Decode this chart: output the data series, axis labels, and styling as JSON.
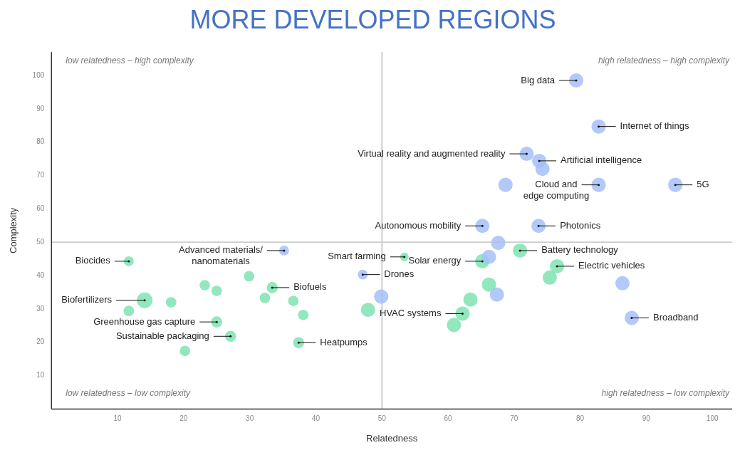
{
  "chart_data": {
    "type": "bubble",
    "title": "MORE DEVELOPED REGIONS",
    "xlabel": "Relatedness",
    "ylabel": "Complexity",
    "xlim": [
      0,
      103
    ],
    "ylim": [
      0,
      107
    ],
    "xticks": [
      10,
      20,
      30,
      40,
      50,
      60,
      70,
      80,
      90,
      100
    ],
    "yticks": [
      10,
      20,
      30,
      40,
      50,
      60,
      70,
      80,
      90,
      100
    ],
    "grid": false,
    "legend": false,
    "ref_lines": [
      {
        "axis": "x",
        "value": 50,
        "color": "#999999"
      },
      {
        "axis": "y",
        "value": 50,
        "color": "#cccccc"
      }
    ],
    "series": [
      {
        "color": "#a5c0f8",
        "x": [
          79.4,
          82.8,
          71.9,
          73.8,
          74.3,
          68.7,
          82.8,
          94.4,
          65.2,
          73.7,
          67.6,
          66.2,
          35.2,
          47.1,
          49.9,
          67.4,
          86.4,
          87.8
        ],
        "values": [
          98.5,
          84.7,
          76.5,
          74.4,
          72.0,
          67.2,
          67.2,
          67.2,
          54.9,
          54.9,
          49.8,
          45.6,
          47.5,
          40.3,
          33.7,
          34.3,
          37.7,
          27.3
        ],
        "sizes": [
          0.83,
          0.83,
          0.83,
          0.83,
          0.83,
          0.83,
          0.83,
          0.83,
          0.83,
          0.83,
          0.83,
          0.83,
          0.4,
          0.4,
          0.83,
          0.83,
          0.83,
          0.83
        ]
      },
      {
        "color": "#7fe3b3",
        "x": [
          11.7,
          14.1,
          18.1,
          11.7,
          23.2,
          25.0,
          25.0,
          27.1,
          20.2,
          29.9,
          33.4,
          32.3,
          36.6,
          38.1,
          37.4,
          47.9,
          53.4,
          65.2,
          70.9,
          76.5,
          75.4,
          66.2,
          63.4,
          62.2,
          60.9
        ],
        "values": [
          44.3,
          32.6,
          32.0,
          29.4,
          37.1,
          35.4,
          26.1,
          21.8,
          17.4,
          39.8,
          36.4,
          33.3,
          32.4,
          28.2,
          19.9,
          29.7,
          45.6,
          44.3,
          47.5,
          42.8,
          39.4,
          37.3,
          32.8,
          28.6,
          25.2
        ],
        "sizes": [
          0.4,
          1,
          0.45,
          0.45,
          0.45,
          0.45,
          0.5,
          0.5,
          0.45,
          0.45,
          0.5,
          0.45,
          0.45,
          0.45,
          0.5,
          0.83,
          0.3,
          0.83,
          0.83,
          0.83,
          0.83,
          0.83,
          0.83,
          0.83,
          0.83
        ]
      }
    ],
    "annotations": [
      "low relatedness – high complexity",
      "high relatedness – high complexity",
      "low relatedness – low complexity",
      "high relatedness – low complexity",
      {
        "text": "Big data",
        "x": 79.4,
        "y": 98.5
      },
      {
        "text": "Internet of things",
        "x": 82.8,
        "y": 84.7
      },
      {
        "text": "Virtual reality and augmented reality",
        "x": 71.9,
        "y": 76.5
      },
      {
        "text": "Artificial intelligence",
        "x": 73.8,
        "y": 74.4
      },
      {
        "text": "Cloud and\nedge computing",
        "x": 82.8,
        "y": 67.2
      },
      {
        "text": "5G",
        "x": 94.4,
        "y": 67.2
      },
      {
        "text": "Autonomous mobility",
        "x": 65.2,
        "y": 54.9
      },
      {
        "text": "Photonics",
        "x": 73.7,
        "y": 54.9
      },
      {
        "text": "Advanced materials/\nnanomaterials",
        "x": 35.2,
        "y": 47.5
      },
      {
        "text": "Drones",
        "x": 47.1,
        "y": 40.3
      },
      {
        "text": "Broadband",
        "x": 87.8,
        "y": 27.3
      },
      {
        "text": "Biocides",
        "x": 11.7,
        "y": 44.3
      },
      {
        "text": "Biofertilizers",
        "x": 14.1,
        "y": 32.6
      },
      {
        "text": "Greenhouse gas capture",
        "x": 25.0,
        "y": 26.1
      },
      {
        "text": "Sustainable packaging",
        "x": 27.1,
        "y": 21.8
      },
      {
        "text": "Biofuels",
        "x": 33.4,
        "y": 36.4
      },
      {
        "text": "Heatpumps",
        "x": 37.4,
        "y": 19.9
      },
      {
        "text": "Smart farming",
        "x": 53.4,
        "y": 45.6
      },
      {
        "text": "Solar energy",
        "x": 65.2,
        "y": 44.3
      },
      {
        "text": "Battery technology",
        "x": 70.9,
        "y": 47.5
      },
      {
        "text": "Electric vehicles",
        "x": 76.5,
        "y": 42.8
      },
      {
        "text": "HVAC systems",
        "x": 62.2,
        "y": 28.6
      }
    ]
  }
}
